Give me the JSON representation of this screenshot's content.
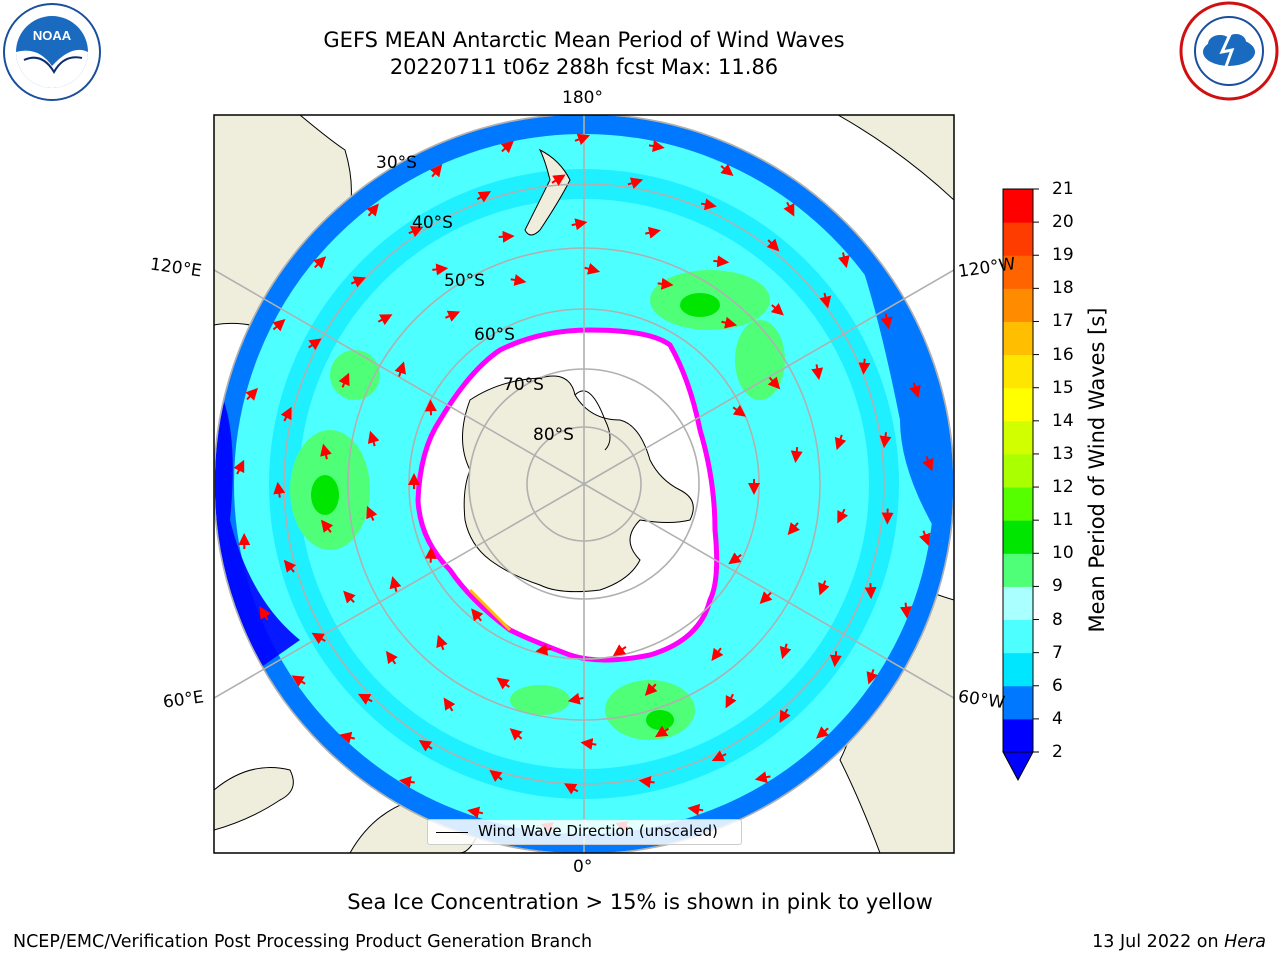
{
  "title": {
    "line1": "GEFS MEAN Antarctic Mean Period of Wind Waves",
    "line2": "20220711 t06z 288h fcst   Max: 11.86"
  },
  "map": {
    "projection": "south-polar-stereographic",
    "longitude_labels": {
      "top": "180°",
      "bottom": "0°",
      "upper_left": "120°E",
      "lower_left": "60°E",
      "upper_right": "120°W",
      "lower_right": "60°W"
    },
    "latitude_labels": [
      "30°S",
      "40°S",
      "50°S",
      "60°S",
      "70°S",
      "80°S"
    ],
    "colors": {
      "land": "#efeedc",
      "ocean_swell": "#00ffff",
      "sea_ice": "#ff00ff",
      "arrow": "#ff0000",
      "grid": "#b0b0b0"
    }
  },
  "colorbar": {
    "label": "Mean Period of Wind Waves [s]",
    "ticks": [
      "2",
      "4",
      "6",
      "7",
      "8",
      "9",
      "10",
      "11",
      "12",
      "13",
      "14",
      "15",
      "16",
      "17",
      "18",
      "19",
      "20",
      "21"
    ],
    "colors": [
      "#0000ff",
      "#0078ff",
      "#00e6ff",
      "#4dffff",
      "#aaffff",
      "#50ff78",
      "#00e600",
      "#55ff00",
      "#aaff00",
      "#d2ff00",
      "#ffff00",
      "#ffe600",
      "#ffbe00",
      "#ff8c00",
      "#ff6400",
      "#ff3c00",
      "#ff0000"
    ],
    "extend_color": "#0000ff"
  },
  "legend": {
    "text": "Wind Wave Direction (unscaled)"
  },
  "annotations": {
    "sea_ice_note": "Sea Ice Concentration > 15% is shown in pink to yellow",
    "footer_left": "NCEP/EMC/Verification Post Processing Product Generation Branch",
    "footer_date": "13 Jul 2022 on ",
    "footer_machine": "Hera"
  },
  "logos": {
    "left": "noaa-logo",
    "right": "nws-logo"
  }
}
